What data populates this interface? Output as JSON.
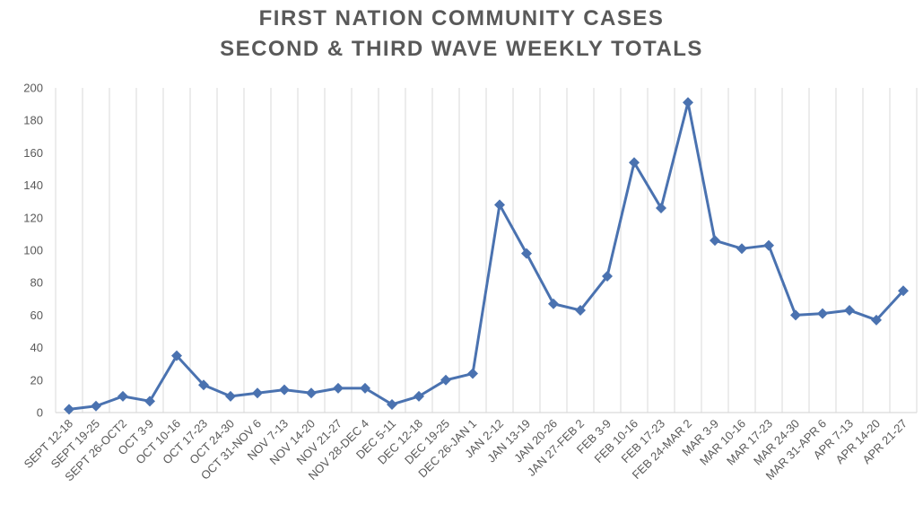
{
  "chart_data": {
    "type": "line",
    "title_lines": [
      "FIRST NATION COMMUNITY CASES",
      "SECOND & THIRD WAVE WEEKLY TOTALS"
    ],
    "categories": [
      "SEPT 12-18",
      "SEPT 19-25",
      "SEPT 26-OCT2",
      "OCT 3-9",
      "OCT 10-16",
      "OCT 17-23",
      "OCT 24-30",
      "OCT 31-NOV 6",
      "NOV 7-13",
      "NOV 14-20",
      "NOV 21-27",
      "NOV 28-DEC 4",
      "DEC 5-11",
      "DEC 12-18",
      "DEC 19-25",
      "DEC 26-JAN 1",
      "JAN 2-12",
      "JAN 13-19",
      "JAN 20-26",
      "JAN 27-FEB 2",
      "FEB 3-9",
      "FEB 10-16",
      "FEB 17-23",
      "FEB 24-MAR 2",
      "MAR 3-9",
      "MAR 10-16",
      "MAR 17-23",
      "MAR 24-30",
      "MAR 31-APR 6",
      "APR 7-13",
      "APR 14-20",
      "APR 21-27"
    ],
    "values": [
      2,
      4,
      10,
      7,
      35,
      17,
      10,
      12,
      14,
      12,
      15,
      15,
      5,
      10,
      20,
      24,
      128,
      98,
      67,
      63,
      84,
      154,
      126,
      191,
      106,
      101,
      103,
      60,
      61,
      63,
      57,
      75
    ],
    "ylim": [
      0,
      200
    ],
    "yticks": [
      0,
      20,
      40,
      60,
      80,
      100,
      120,
      140,
      160,
      180,
      200
    ],
    "grid": "vertical",
    "line_color": "#4a72b0",
    "marker": "diamond",
    "grid_color": "#d9d9d9"
  }
}
